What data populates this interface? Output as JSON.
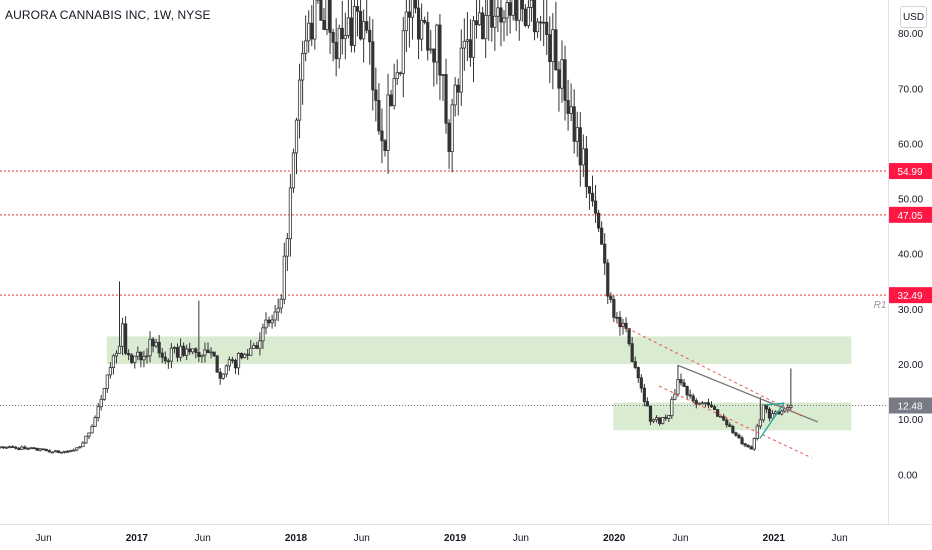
{
  "header": {
    "title": "AURORA CANNABIS INC, 1W, NYSE"
  },
  "currency_button": "USD",
  "colors": {
    "candle": "#333333",
    "resistance": "#e53935",
    "zone_fill": "#a5cf8f",
    "channel": "#ef5350",
    "trendline": "#777777",
    "triangle": "#26a69a",
    "price_tag": "#787b86",
    "level_tag": "#ff1744"
  },
  "chart_data": {
    "type": "candlestick",
    "title": "AURORA CANNABIS INC, 1W, NYSE",
    "currency": "USD",
    "y_axis": {
      "ticks": [
        "80.00",
        "70.00",
        "60.00",
        "50.00",
        "40.00",
        "30.00",
        "20.00",
        "10.00",
        "0.00"
      ],
      "range": [
        -9,
        86
      ]
    },
    "x_axis": {
      "range": [
        "2016-02-22",
        "2021-09-20"
      ],
      "ticks": [
        {
          "label": "Jun",
          "date": "2016-06-01",
          "bold": false
        },
        {
          "label": "2017",
          "date": "2017-01-01",
          "bold": true
        },
        {
          "label": "Jun",
          "date": "2017-06-01",
          "bold": false
        },
        {
          "label": "2018",
          "date": "2018-01-01",
          "bold": true
        },
        {
          "label": "Jun",
          "date": "2018-06-01",
          "bold": false
        },
        {
          "label": "2019",
          "date": "2019-01-01",
          "bold": true
        },
        {
          "label": "Jun",
          "date": "2019-06-01",
          "bold": false
        },
        {
          "label": "2020",
          "date": "2020-01-01",
          "bold": true
        },
        {
          "label": "Jun",
          "date": "2020-06-01",
          "bold": false
        },
        {
          "label": "2021",
          "date": "2021-01-01",
          "bold": true
        },
        {
          "label": "Jun",
          "date": "2021-06-01",
          "bold": false
        }
      ]
    },
    "last_price": {
      "value": 12.48,
      "label": "12.48"
    },
    "resistance_levels": [
      {
        "value": 54.99,
        "label": "54.99"
      },
      {
        "value": 47.05,
        "label": "47.05"
      },
      {
        "value": 32.49,
        "label": "32.49",
        "annotation": "R1"
      }
    ],
    "zones": [
      {
        "from": "2016-10-24",
        "to": "2021-06-28",
        "low": 20,
        "high": 25
      },
      {
        "from": "2019-12-30",
        "to": "2021-06-28",
        "low": 8,
        "high": 13
      }
    ],
    "trendlines": [
      {
        "style": "solid",
        "color": "trendline",
        "points": [
          [
            "2020-05-25",
            19.8
          ],
          [
            "2021-04-12",
            9.5
          ]
        ]
      },
      {
        "style": "dashed",
        "color": "channel",
        "points": [
          [
            "2020-01-06",
            27.5
          ],
          [
            "2021-03-08",
            10.5
          ]
        ]
      },
      {
        "style": "dashed",
        "color": "channel",
        "points": [
          [
            "2020-04-13",
            16.0
          ],
          [
            "2021-03-29",
            3.0
          ]
        ]
      },
      {
        "style": "solid",
        "color": "triangle",
        "points": [
          [
            "2020-11-30",
            6.5
          ],
          [
            "2021-01-25",
            13.0
          ]
        ]
      },
      {
        "style": "solid",
        "color": "triangle",
        "points": [
          [
            "2020-12-14",
            12.6
          ],
          [
            "2021-01-25",
            12.9
          ]
        ]
      }
    ],
    "price_path": [
      [
        "2016-02-22",
        5.0
      ],
      [
        "2016-05-02",
        4.6
      ],
      [
        "2016-07-04",
        4.0
      ],
      [
        "2016-08-08",
        4.3
      ],
      [
        "2016-08-29",
        5.5
      ],
      [
        "2016-09-19",
        9.0
      ],
      [
        "2016-10-10",
        13.0
      ],
      [
        "2016-10-24",
        19.0
      ],
      [
        "2016-11-07",
        21.0
      ],
      [
        "2016-11-28",
        26.0
      ],
      [
        "2016-12-12",
        20.5
      ],
      [
        "2017-01-09",
        22.0
      ],
      [
        "2017-02-06",
        23.5
      ],
      [
        "2017-03-06",
        21.0
      ],
      [
        "2017-04-10",
        22.5
      ],
      [
        "2017-05-15",
        22.0
      ],
      [
        "2017-06-19",
        21.5
      ],
      [
        "2017-07-10",
        18.5
      ],
      [
        "2017-08-07",
        20.0
      ],
      [
        "2017-09-04",
        21.5
      ],
      [
        "2017-10-09",
        25.0
      ],
      [
        "2017-11-06",
        28.0
      ],
      [
        "2017-11-27",
        30.0
      ],
      [
        "2017-12-11",
        45.0
      ],
      [
        "2018-01-01",
        62.0
      ],
      [
        "2018-01-15",
        76.0
      ],
      [
        "2018-01-29",
        80.0
      ],
      [
        "2018-02-12",
        84.0
      ],
      [
        "2018-03-12",
        84.5
      ],
      [
        "2018-04-16",
        77.0
      ],
      [
        "2018-05-14",
        84.0
      ],
      [
        "2018-06-11",
        79.0
      ],
      [
        "2018-07-02",
        66.0
      ],
      [
        "2018-07-23",
        62.0
      ],
      [
        "2018-08-13",
        72.0
      ],
      [
        "2018-09-17",
        84.0
      ],
      [
        "2018-10-15",
        83.0
      ],
      [
        "2018-11-19",
        78.0
      ],
      [
        "2018-12-17",
        62.0
      ],
      [
        "2019-01-14",
        74.0
      ],
      [
        "2019-02-18",
        80.0
      ],
      [
        "2019-03-25",
        84.0
      ],
      [
        "2019-04-29",
        85.0
      ],
      [
        "2019-06-03",
        85.5
      ],
      [
        "2019-07-08",
        84.0
      ],
      [
        "2019-08-12",
        77.0
      ],
      [
        "2019-09-09",
        70.0
      ],
      [
        "2019-10-07",
        62.0
      ],
      [
        "2019-10-28",
        54.0
      ],
      [
        "2019-11-18",
        46.0
      ],
      [
        "2019-12-02",
        42.0
      ],
      [
        "2019-12-16",
        34.0
      ],
      [
        "2020-01-06",
        28.0
      ],
      [
        "2020-01-27",
        25.0
      ],
      [
        "2020-02-17",
        20.0
      ],
      [
        "2020-03-09",
        14.0
      ],
      [
        "2020-03-23",
        10.0
      ],
      [
        "2020-04-13",
        9.8
      ],
      [
        "2020-05-04",
        10.5
      ],
      [
        "2020-05-25",
        17.5
      ],
      [
        "2020-06-15",
        15.0
      ],
      [
        "2020-07-13",
        13.0
      ],
      [
        "2020-08-10",
        12.0
      ],
      [
        "2020-09-07",
        10.0
      ],
      [
        "2020-10-05",
        7.0
      ],
      [
        "2020-10-26",
        5.0
      ],
      [
        "2020-11-09",
        4.5
      ],
      [
        "2020-11-23",
        8.5
      ],
      [
        "2020-12-07",
        12.5
      ],
      [
        "2020-12-21",
        10.0
      ],
      [
        "2021-01-11",
        11.5
      ],
      [
        "2021-01-25",
        12.0
      ],
      [
        "2021-02-08",
        12.48
      ]
    ],
    "spikes": [
      {
        "date": "2016-11-21",
        "high": 35.0
      },
      {
        "date": "2017-05-22",
        "high": 31.5
      },
      {
        "date": "2018-05-14",
        "high": 84.0
      },
      {
        "date": "2018-07-02",
        "high": 49.5
      },
      {
        "date": "2019-01-14",
        "high": 55.5
      },
      {
        "date": "2020-05-25",
        "high": 19.8
      },
      {
        "date": "2020-11-30",
        "high": 14.0
      },
      {
        "date": "2021-02-08",
        "high": 19.2
      }
    ]
  }
}
